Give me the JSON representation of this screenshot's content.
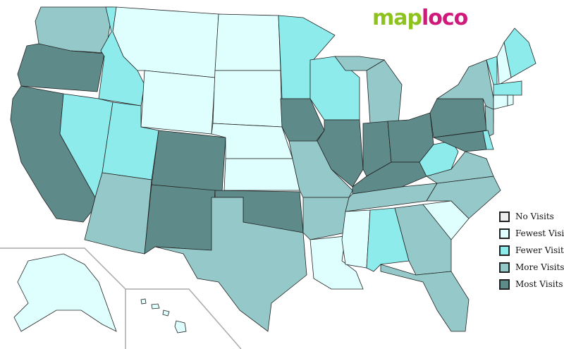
{
  "logo": {
    "text_a": "map",
    "text_b": "loco"
  },
  "legend": [
    {
      "label": "No Visits",
      "color": "#eeeeee",
      "key": "none"
    },
    {
      "label": "Fewest Visits",
      "color": "#dfffff",
      "key": "fewest"
    },
    {
      "label": "Fewer Visits",
      "color": "#8eebeb",
      "key": "fewer"
    },
    {
      "label": "More Visits",
      "color": "#95c8c8",
      "key": "more"
    },
    {
      "label": "Most Visits",
      "color": "#5f8a8a",
      "key": "most"
    }
  ],
  "states": {
    "WA": "more",
    "OR": "most",
    "CA": "most",
    "ID": "fewer",
    "NV": "fewer",
    "MT": "fewest",
    "WY": "fewest",
    "UT": "fewer",
    "AZ": "more",
    "CO": "most",
    "NM": "most",
    "ND": "fewest",
    "SD": "fewest",
    "NE": "fewest",
    "KS": "fewest",
    "OK": "most",
    "TX": "more",
    "MN": "fewer",
    "IA": "most",
    "MO": "more",
    "AR": "more",
    "LA": "fewest",
    "WI": "fewer",
    "IL": "most",
    "MI": "more",
    "IN": "most",
    "OH": "most",
    "KY": "most",
    "TN": "more",
    "MS": "fewest",
    "AL": "fewer",
    "GA": "more",
    "FL": "more",
    "SC": "fewest",
    "NC": "more",
    "VA": "more",
    "WV": "fewer",
    "PA": "most",
    "NY": "more",
    "NJ": "more",
    "MD": "most",
    "DE": "fewer",
    "ME": "fewer",
    "VT": "fewer",
    "NH": "fewest",
    "MA": "fewer",
    "CT": "fewest",
    "RI": "fewest",
    "AK": "fewest",
    "HI": "fewest"
  }
}
